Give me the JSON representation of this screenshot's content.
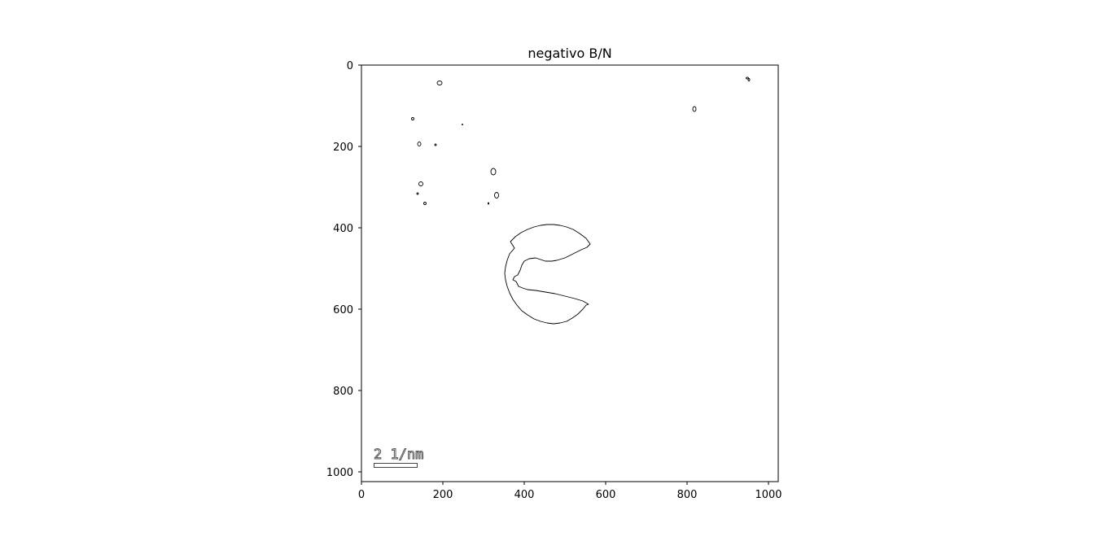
{
  "title": "negativo B/N",
  "x_axis": {
    "range": [
      0,
      1024
    ],
    "ticks": [
      0,
      200,
      400,
      600,
      800,
      1000
    ],
    "tick_labels": [
      "0",
      "200",
      "400",
      "600",
      "800",
      "1000"
    ]
  },
  "y_axis": {
    "range": [
      1024,
      0
    ],
    "ticks": [
      0,
      200,
      400,
      600,
      800,
      1000
    ],
    "tick_labels": [
      "0",
      "200",
      "400",
      "600",
      "800",
      "1000"
    ]
  },
  "image": {
    "description_kind": "edge-detected micrograph (negative black/white)",
    "background_color": "#ffffff",
    "edge_color": "#000000"
  },
  "scale_bar": {
    "label": "2 1/nm"
  }
}
